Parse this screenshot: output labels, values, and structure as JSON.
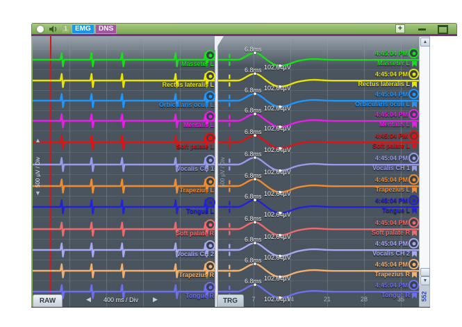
{
  "titlebar": {
    "monitor_number": "1",
    "tabs": [
      {
        "label": "EMG",
        "active": true
      },
      {
        "label": "DNS",
        "active": false
      }
    ],
    "zoom_in_label": "+"
  },
  "icons": {
    "up": "▲",
    "down": "▼",
    "left": "◀",
    "right": "▶"
  },
  "left_panel": {
    "mode_label": "RAW",
    "gain_label": "500 µV / Div",
    "timebase_label": "400 ms / Div"
  },
  "right_panel": {
    "mode_label": "TRG",
    "gain_label": "500 µV / Div",
    "axis_ticks": [
      "7",
      "14",
      "21",
      "28",
      "35"
    ],
    "scroll_position": "552"
  },
  "measurements": {
    "latency": "6.8ms",
    "amplitude": "102.64µV",
    "timestamp": "4:45:04 PM"
  },
  "channels": [
    {
      "name": "Masseter L",
      "color": "#17e017",
      "selected": false
    },
    {
      "name": "Rectus lateralis L",
      "color": "#e8e400",
      "selected": false
    },
    {
      "name": "Orbicularis oculi L",
      "color": "#1e96ff",
      "selected": false
    },
    {
      "name": "Mentalis L",
      "color": "#e81ee8",
      "selected": false
    },
    {
      "name": "Soft palate L",
      "color": "#e01212",
      "selected": true
    },
    {
      "name": "Vocalis CH 1",
      "color": "#9a9aec",
      "selected": false
    },
    {
      "name": "Trapezius L",
      "color": "#f08c2e",
      "selected": false
    },
    {
      "name": "Tongue L",
      "color": "#2222d8",
      "selected": false
    },
    {
      "name": "Soft palate R",
      "color": "#ef6a6a",
      "selected": false
    },
    {
      "name": "Vocalis CH 2",
      "color": "#a8a8f2",
      "selected": false
    },
    {
      "name": "Trapezius R",
      "color": "#f2b06e",
      "selected": false
    },
    {
      "name": "Tongue R",
      "color": "#6e6ef0",
      "selected": false
    }
  ],
  "colors": {
    "titlebar_green": "#7fae57",
    "accent_purple": "#7b2d86",
    "cursor_red": "#d81414",
    "panel_bg": "#4a545e"
  }
}
